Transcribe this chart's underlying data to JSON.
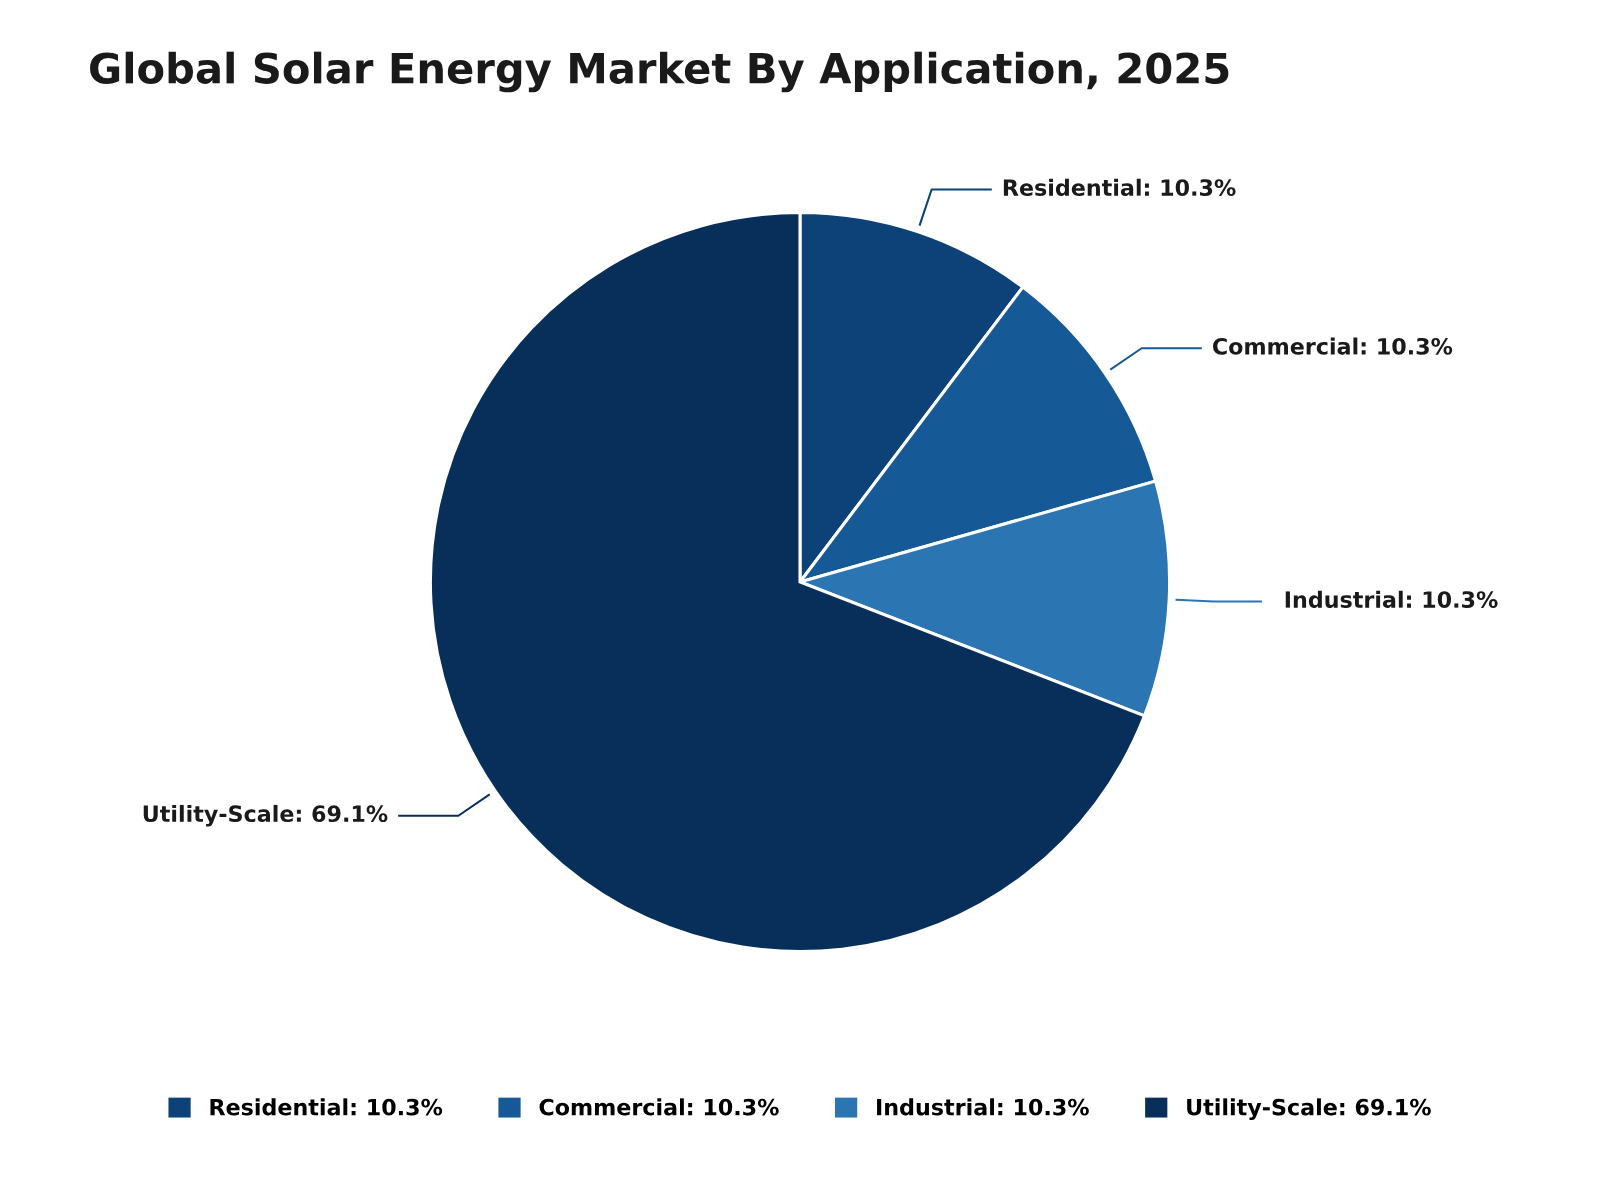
{
  "chart_data": {
    "type": "pie",
    "title": "Global Solar Energy Market By Application, 2025",
    "categories": [
      "Residential",
      "Commercial",
      "Industrial",
      "Utility-Scale"
    ],
    "values": [
      10.3,
      10.3,
      10.3,
      69.1
    ],
    "value_labels": [
      "10.3%",
      "10.3%",
      "10.3%",
      "69.1%"
    ],
    "colors": [
      "#0d4278",
      "#155a96",
      "#2b75b3",
      "#072f5a"
    ],
    "legend": "bottom"
  }
}
